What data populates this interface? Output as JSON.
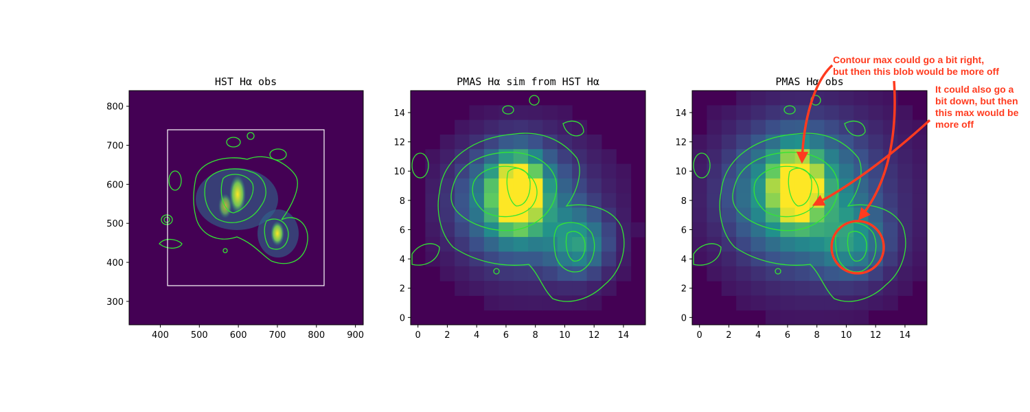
{
  "chart_data": [
    {
      "type": "heatmap",
      "title": "HST Hα obs",
      "xticks": [
        400,
        500,
        600,
        700,
        800,
        900
      ],
      "yticks": [
        300,
        400,
        500,
        600,
        700,
        800
      ],
      "xlim": [
        320,
        920
      ],
      "ylim": [
        240,
        840
      ],
      "overlay_box": {
        "x": [
          420,
          820
        ],
        "y": [
          340,
          740
        ]
      },
      "contours": "green Hα contours",
      "colormap": "viridis"
    },
    {
      "type": "heatmap",
      "title": "PMAS Hα sim from HST Hα",
      "xticks": [
        0,
        2,
        4,
        6,
        8,
        10,
        12,
        14
      ],
      "yticks": [
        0,
        2,
        4,
        6,
        8,
        10,
        12,
        14
      ],
      "xlim": [
        -0.5,
        15.5
      ],
      "ylim": [
        -0.5,
        15.5
      ],
      "colormap": "viridis"
    },
    {
      "type": "heatmap",
      "title": "PMAS Hα obs",
      "xticks": [
        0,
        2,
        4,
        6,
        8,
        10,
        12,
        14
      ],
      "yticks": [
        0,
        2,
        4,
        6,
        8,
        10,
        12,
        14
      ],
      "xlim": [
        -0.5,
        15.5
      ],
      "ylim": [
        -0.5,
        15.5
      ],
      "colormap": "viridis",
      "annotations": [
        {
          "lines": [
            "Contour max could go a bit right,",
            "but then this blob would be more off"
          ]
        },
        {
          "lines": [
            "It could also go a",
            "bit down, but then",
            "this max would be",
            "more off"
          ]
        }
      ]
    }
  ],
  "colors": {
    "background": "#440154",
    "contour": "#33e633",
    "annotation": "#ff3b1f",
    "box": "#ffffff"
  }
}
